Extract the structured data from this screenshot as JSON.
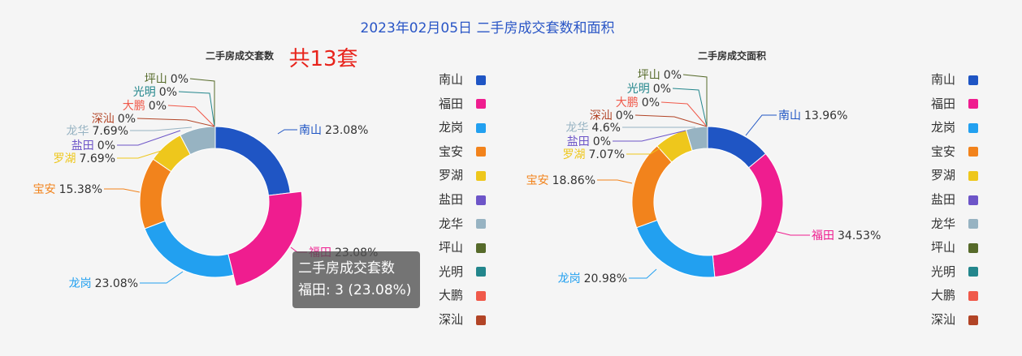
{
  "title": "2023年02月05日 二手房成交套数和面积",
  "colors": {
    "南山": "#1f55c4",
    "福田": "#ef1d8f",
    "龙岗": "#22a0f0",
    "宝安": "#f2831c",
    "罗湖": "#eec71c",
    "盐田": "#6d55c8",
    "龙华": "#97b3c2",
    "坪山": "#566a2a",
    "光明": "#23868c",
    "大鹏": "#f0594a",
    "深汕": "#b24426"
  },
  "legend": [
    "南山",
    "福田",
    "龙岗",
    "宝安",
    "罗湖",
    "盐田",
    "龙华",
    "坪山",
    "光明",
    "大鹏",
    "深汕"
  ],
  "chart_data": [
    {
      "type": "pie",
      "title": "二手房成交套数",
      "total_text": "共13套",
      "categories": [
        "南山",
        "福田",
        "龙岗",
        "宝安",
        "罗湖",
        "盐田",
        "龙华",
        "坪山",
        "光明",
        "大鹏",
        "深汕"
      ],
      "values": [
        3,
        3,
        3,
        2,
        1,
        0,
        1,
        0,
        0,
        0,
        0
      ],
      "percent_labels": [
        "23.08%",
        "23.08%",
        "23.08%",
        "15.38%",
        "7.69%",
        "0%",
        "7.69%",
        "0%",
        "0%",
        "0%",
        "0%"
      ]
    },
    {
      "type": "pie",
      "title": "二手房成交面积",
      "categories": [
        "南山",
        "福田",
        "龙岗",
        "宝安",
        "罗湖",
        "盐田",
        "龙华",
        "坪山",
        "光明",
        "大鹏",
        "深汕"
      ],
      "values": [
        13.96,
        34.53,
        20.98,
        18.86,
        7.07,
        0,
        4.6,
        0,
        0,
        0,
        0
      ],
      "percent_labels": [
        "13.96%",
        "34.53%",
        "20.98%",
        "18.86%",
        "7.07%",
        "0%",
        "4.6%",
        "0%",
        "0%",
        "0%",
        "0%"
      ]
    }
  ],
  "tooltip": {
    "title": "二手房成交套数",
    "line": "福田: 3 (23.08%)"
  }
}
